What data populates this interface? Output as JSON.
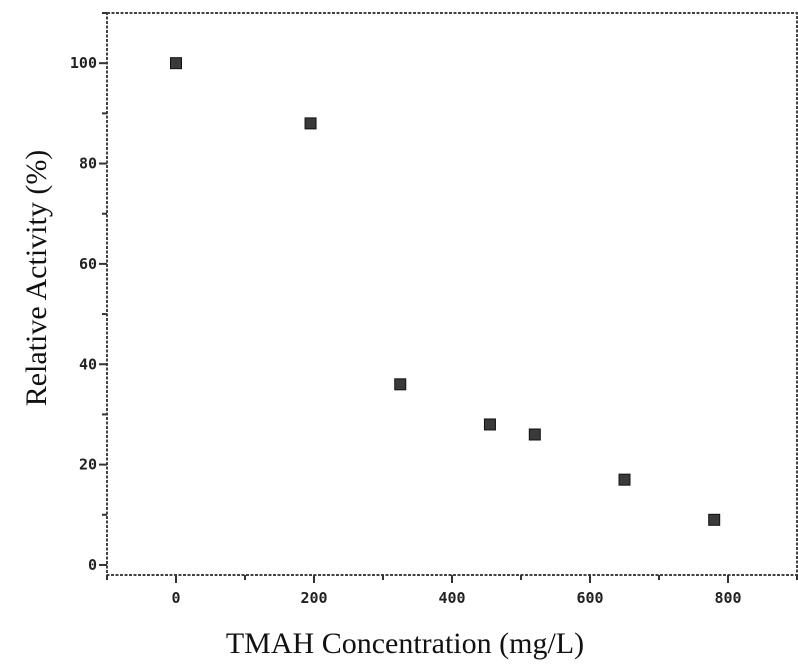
{
  "chart_data": {
    "type": "scatter",
    "xlabel": "TMAH Concentration (mg/L)",
    "ylabel": "Relative Activity (%)",
    "xlim": [
      -100,
      900
    ],
    "ylim": [
      -2,
      110
    ],
    "x_ticks": [
      0,
      200,
      400,
      600,
      800
    ],
    "x_tick_labels": [
      "0",
      "200",
      "400",
      "600",
      "800"
    ],
    "y_ticks": [
      0,
      20,
      40,
      60,
      80,
      100
    ],
    "y_tick_labels": [
      "0",
      "20",
      "40",
      "60",
      "80",
      "100"
    ],
    "grid": false,
    "marker": "square",
    "points": [
      {
        "x": 0,
        "y": 100
      },
      {
        "x": 195,
        "y": 88
      },
      {
        "x": 325,
        "y": 36
      },
      {
        "x": 455,
        "y": 28
      },
      {
        "x": 520,
        "y": 26
      },
      {
        "x": 650,
        "y": 17
      },
      {
        "x": 780,
        "y": 9
      }
    ]
  }
}
